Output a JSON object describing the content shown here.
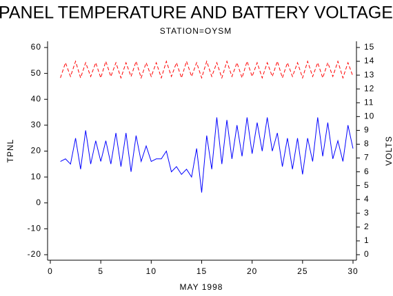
{
  "chart_data": {
    "type": "line",
    "title": "PANEL TEMPERATURE AND BATTERY VOLTAGE",
    "subtitle": "STATION=OYSM",
    "x_label": "MAY 1998",
    "y_label": "TPNL",
    "y2_label": "VOLTS",
    "xlim": [
      0,
      30
    ],
    "xticks": [
      0,
      5,
      10,
      15,
      20,
      25,
      30
    ],
    "ylim": [
      -20,
      60
    ],
    "yticks": [
      -20,
      -10,
      0,
      10,
      20,
      30,
      40,
      50,
      60
    ],
    "y2lim": [
      0,
      15
    ],
    "y2ticks": [
      0,
      1,
      2,
      3,
      4,
      5,
      6,
      7,
      8,
      9,
      10,
      11,
      12,
      13,
      14,
      15
    ],
    "x": [
      1,
      1.5,
      2,
      2.5,
      3,
      3.5,
      4,
      4.5,
      5,
      5.5,
      6,
      6.5,
      7,
      7.5,
      8,
      8.5,
      9,
      9.5,
      10,
      10.5,
      11,
      11.5,
      12,
      12.5,
      13,
      13.5,
      14,
      14.5,
      15,
      15.5,
      16,
      16.5,
      17,
      17.5,
      18,
      18.5,
      19,
      19.5,
      20,
      20.5,
      21,
      21.5,
      22,
      22.5,
      23,
      23.5,
      24,
      24.5,
      25,
      25.5,
      26,
      26.5,
      27,
      27.5,
      28,
      28.5,
      29,
      29.5,
      30
    ],
    "series": [
      {
        "color": "#0000ff",
        "values": [
          16,
          17,
          15,
          25,
          13,
          28,
          15,
          24,
          16,
          24,
          15,
          27,
          14,
          27,
          12,
          26,
          16,
          22,
          16,
          17,
          17,
          20,
          12,
          14,
          11,
          13,
          10,
          21,
          4,
          26,
          13,
          33,
          15,
          32,
          17,
          30,
          18,
          33,
          19,
          31,
          20,
          33,
          20,
          27,
          14,
          25,
          13,
          25,
          11,
          25,
          16,
          33,
          18,
          31,
          17,
          24,
          16,
          30,
          21
        ]
      },
      {
        "color": "#ff0000",
        "axis": "y2",
        "dashed": true,
        "values": [
          12.8,
          13.9,
          12.9,
          14.0,
          12.8,
          13.9,
          12.9,
          13.9,
          12.8,
          14.0,
          12.9,
          13.9,
          12.8,
          13.9,
          12.9,
          14.0,
          12.8,
          13.9,
          12.9,
          13.9,
          12.8,
          14.0,
          12.9,
          13.9,
          12.8,
          14.0,
          12.9,
          13.9,
          12.8,
          14.0,
          12.9,
          13.9,
          12.8,
          14.0,
          12.9,
          13.9,
          12.8,
          14.0,
          12.9,
          13.9,
          12.8,
          13.9,
          12.9,
          14.0,
          12.8,
          13.9,
          12.9,
          13.9,
          12.8,
          14.0,
          12.9,
          13.9,
          12.8,
          13.9,
          12.9,
          14.0,
          12.8,
          13.9,
          12.9
        ]
      }
    ]
  }
}
